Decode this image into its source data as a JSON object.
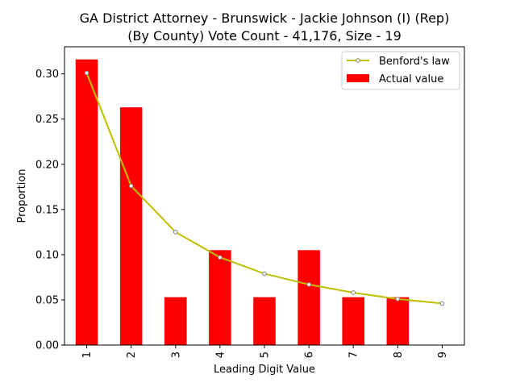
{
  "chart_data": {
    "type": "bar",
    "title_line1": "GA District Attorney - Brunswick - Jackie Johnson (I) (Rep)",
    "title_line2": "(By County) Vote Count - 41,176, Size - 19",
    "xlabel": "Leading Digit Value",
    "ylabel": "Proportion",
    "categories": [
      "1",
      "2",
      "3",
      "4",
      "5",
      "6",
      "7",
      "8",
      "9"
    ],
    "ylim": [
      0,
      0.33
    ],
    "yticks": [
      "0.00",
      "0.05",
      "0.10",
      "0.15",
      "0.20",
      "0.25",
      "0.30"
    ],
    "series": [
      {
        "name": "Actual value",
        "kind": "bar",
        "color": "#ff0000",
        "values": [
          0.316,
          0.263,
          0.053,
          0.105,
          0.053,
          0.105,
          0.053,
          0.053,
          0.0
        ]
      },
      {
        "name": "Benford's law",
        "kind": "line",
        "color": "#bfbf00",
        "values": [
          0.301,
          0.176,
          0.125,
          0.097,
          0.079,
          0.067,
          0.058,
          0.051,
          0.046
        ]
      }
    ],
    "legend": {
      "position": "top-right",
      "line_label": "Benford's law",
      "bar_label": "Actual value"
    }
  }
}
